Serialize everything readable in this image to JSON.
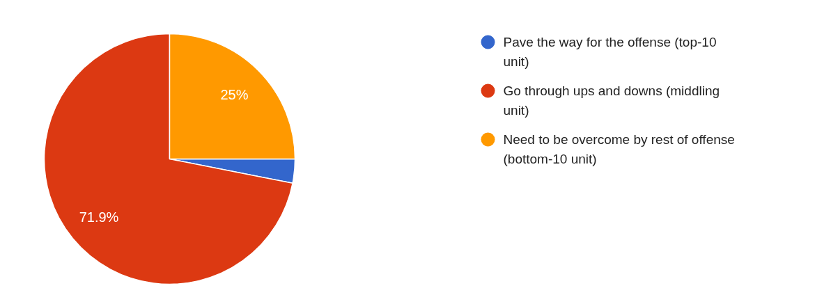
{
  "chart_data": {
    "type": "pie",
    "categories": [
      "Pave the way for the offense (top-10 unit)",
      "Go through ups and downs (middling unit)",
      "Need to be overcome by rest of offense (bottom-10 unit)"
    ],
    "values": [
      3.1,
      71.9,
      25
    ],
    "colors": [
      "#3366cc",
      "#dc3912",
      "#ff9900"
    ],
    "value_labels": [
      null,
      "71.9%",
      "25%"
    ],
    "legend": "right"
  }
}
